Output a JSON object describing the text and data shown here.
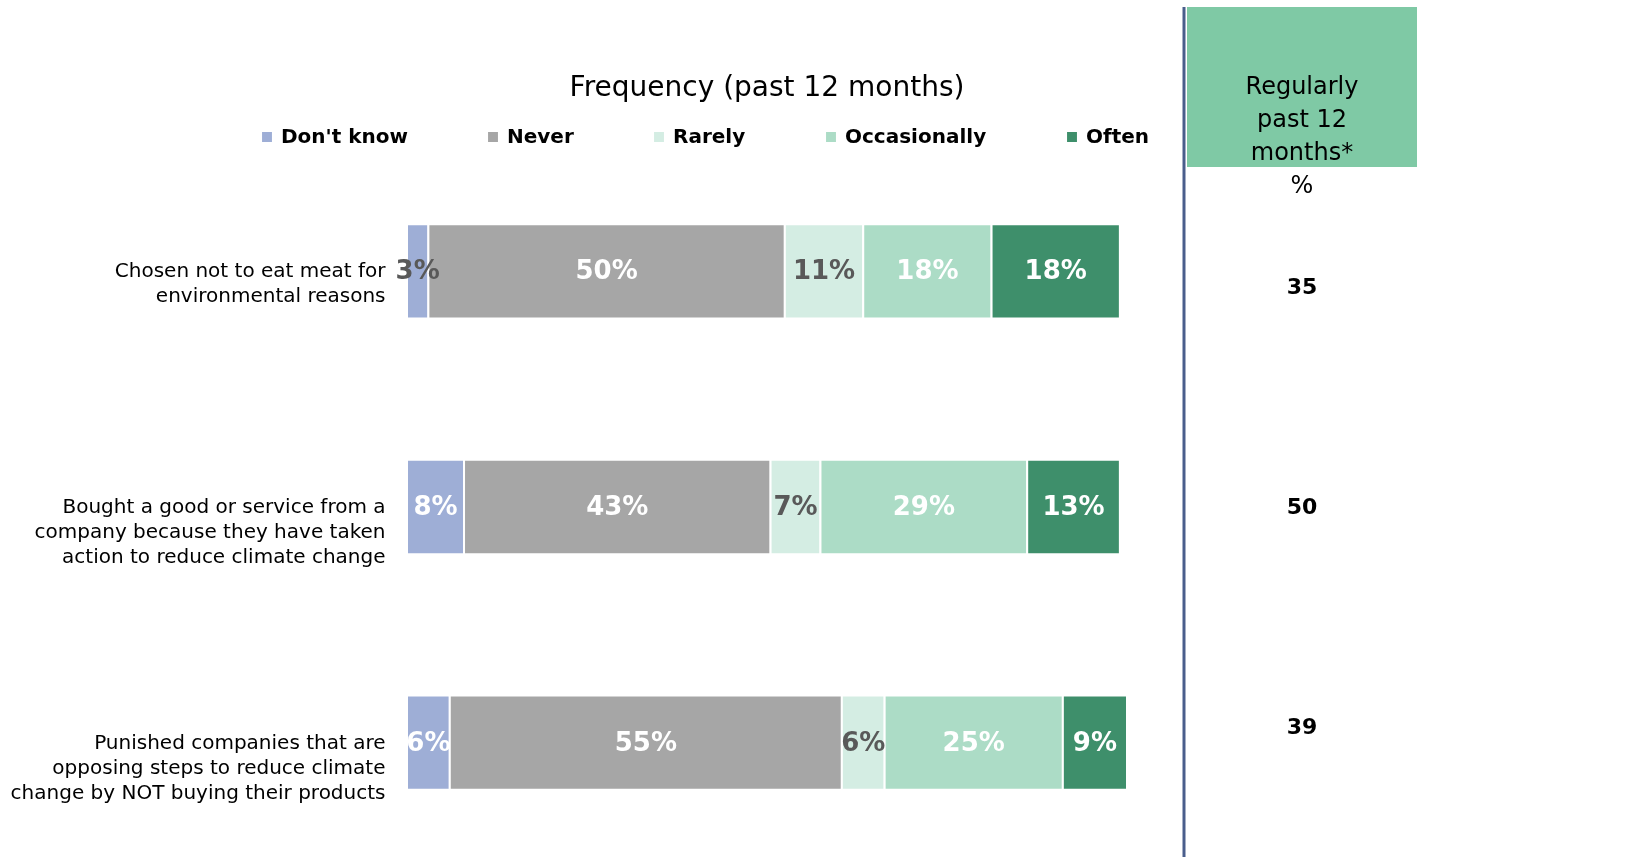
{
  "chart_data": [
    {
      "type": "bar",
      "orientation": "horizontal",
      "stacked": true,
      "title": "Frequency (past 12 months)",
      "categories": [
        "Chosen not to eat meat for environmental reasons",
        "Bought a good or service from a company because they have taken action to reduce climate change",
        "Punished companies that are opposing steps to reduce climate change by NOT buying their products"
      ],
      "legend": "top",
      "series": [
        {
          "name": "Don't know",
          "color": "#9eaed6",
          "values": [
            3,
            8,
            6
          ],
          "value_labels": [
            "3%",
            "8%",
            "6%"
          ]
        },
        {
          "name": "Never",
          "color": "#a6a6a6",
          "values": [
            50,
            43,
            55
          ],
          "value_labels": [
            "50%",
            "43%",
            "55%"
          ]
        },
        {
          "name": "Rarely",
          "color": "#d4ede3",
          "values": [
            11,
            7,
            6
          ],
          "value_labels": [
            "11%",
            "7%",
            "6%"
          ]
        },
        {
          "name": "Occasionally",
          "color": "#acdcc6",
          "values": [
            18,
            29,
            25
          ],
          "value_labels": [
            "18%",
            "29%",
            "25%"
          ]
        },
        {
          "name": "Often",
          "color": "#3e8f6b",
          "values": [
            18,
            13,
            9
          ],
          "value_labels": [
            "18%",
            "13%",
            "9%"
          ]
        }
      ]
    },
    {
      "type": "other",
      "title": "Regularly past 12 months* %",
      "annotations": [
        "35",
        "50",
        "39"
      ]
    }
  ]
}
